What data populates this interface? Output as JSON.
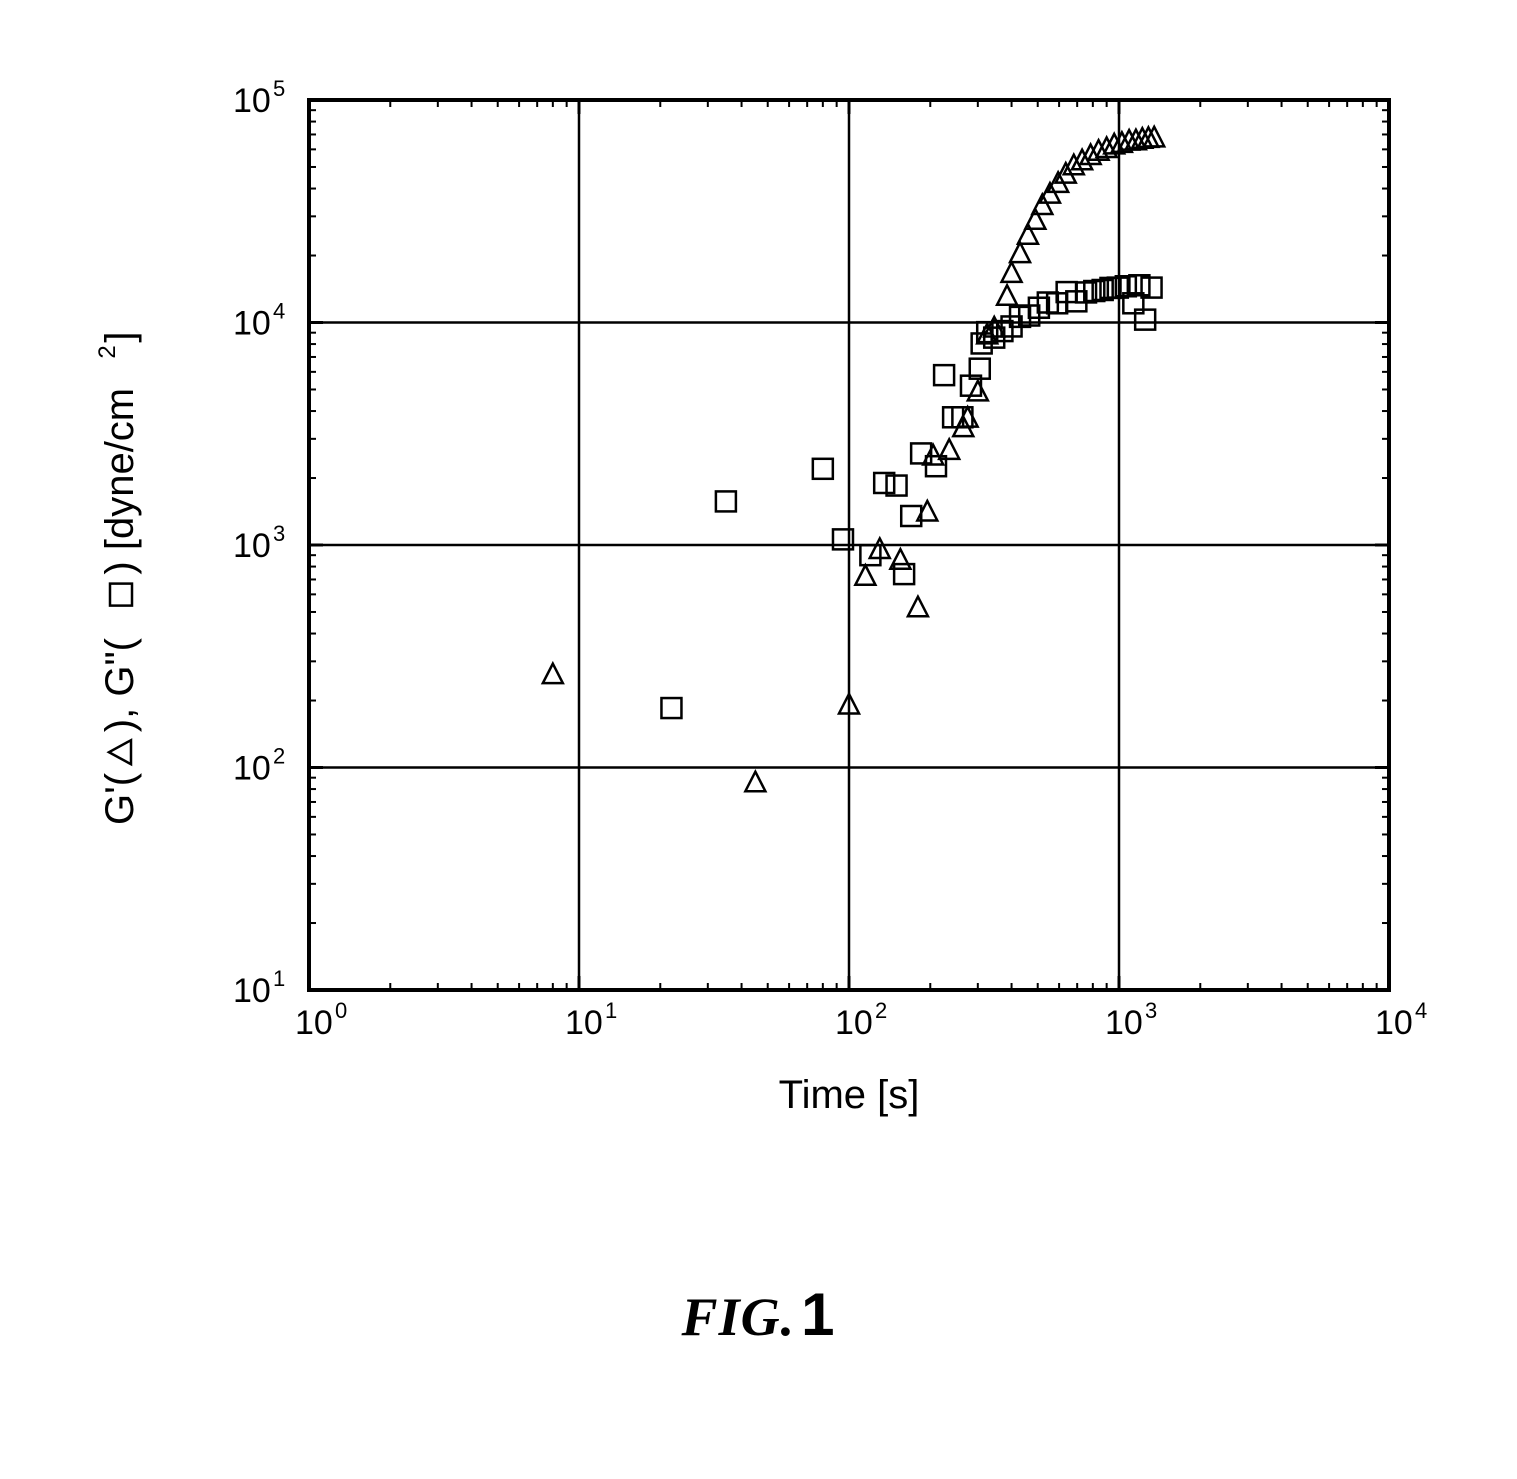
{
  "chart": {
    "type": "scatter-loglog",
    "caption_prefix": "FIG.",
    "caption_number": "1",
    "xlabel": "Time [s]",
    "ylabel_parts": {
      "a": "G'(",
      "b": "), G\"(",
      "c": ") [dyne/cm",
      "d": "]"
    },
    "x": {
      "min_exp": 0,
      "max_exp": 4,
      "base_label": "10"
    },
    "y": {
      "min_exp": 1,
      "max_exp": 5,
      "base_label": "10"
    },
    "axis_font_size": 40,
    "tick_font_size": 34,
    "tick_sup_font_size": 22,
    "colors": {
      "background": "#ffffff",
      "axis": "#000000",
      "grid": "#000000",
      "marker_stroke": "#000000",
      "marker_fill": "none"
    },
    "marker_size": 10,
    "stroke_width": 2.5,
    "series": [
      {
        "name": "G' (triangle)",
        "marker": "triangle",
        "points": [
          [
            8,
            260
          ],
          [
            45,
            85
          ],
          [
            100,
            190
          ],
          [
            115,
            720
          ],
          [
            130,
            950
          ],
          [
            155,
            850
          ],
          [
            180,
            520
          ],
          [
            195,
            1400
          ],
          [
            205,
            2500
          ],
          [
            235,
            2650
          ],
          [
            265,
            3350
          ],
          [
            275,
            3700
          ],
          [
            300,
            4850
          ],
          [
            325,
            8750
          ],
          [
            345,
            9400
          ],
          [
            385,
            13050
          ],
          [
            400,
            16550
          ],
          [
            430,
            20300
          ],
          [
            460,
            24550
          ],
          [
            490,
            28650
          ],
          [
            520,
            33400
          ],
          [
            555,
            37550
          ],
          [
            595,
            42000
          ],
          [
            635,
            46200
          ],
          [
            680,
            50400
          ],
          [
            730,
            53050
          ],
          [
            785,
            56000
          ],
          [
            840,
            58550
          ],
          [
            900,
            60200
          ],
          [
            960,
            62500
          ],
          [
            1025,
            63500
          ],
          [
            1090,
            65000
          ],
          [
            1155,
            65250
          ],
          [
            1220,
            66300
          ],
          [
            1285,
            66850
          ],
          [
            1350,
            67250
          ]
        ]
      },
      {
        "name": "G\" (square)",
        "marker": "square",
        "points": [
          [
            22,
            185
          ],
          [
            35,
            1570
          ],
          [
            80,
            2200
          ],
          [
            95,
            1060
          ],
          [
            120,
            900
          ],
          [
            135,
            1900
          ],
          [
            150,
            1850
          ],
          [
            160,
            740
          ],
          [
            170,
            1350
          ],
          [
            185,
            2580
          ],
          [
            210,
            2260
          ],
          [
            225,
            5800
          ],
          [
            243,
            3750
          ],
          [
            263,
            3750
          ],
          [
            283,
            5200
          ],
          [
            305,
            6200
          ],
          [
            310,
            8050
          ],
          [
            325,
            9050
          ],
          [
            345,
            8550
          ],
          [
            370,
            9150
          ],
          [
            400,
            9600
          ],
          [
            430,
            10600
          ],
          [
            465,
            10750
          ],
          [
            505,
            11650
          ],
          [
            545,
            12300
          ],
          [
            590,
            12200
          ],
          [
            640,
            13700
          ],
          [
            695,
            12450
          ],
          [
            755,
            13650
          ],
          [
            810,
            13850
          ],
          [
            870,
            14000
          ],
          [
            930,
            14300
          ],
          [
            990,
            14350
          ],
          [
            1060,
            14550
          ],
          [
            1130,
            12200
          ],
          [
            1190,
            14700
          ],
          [
            1250,
            10300
          ],
          [
            1320,
            14350
          ]
        ]
      }
    ]
  }
}
